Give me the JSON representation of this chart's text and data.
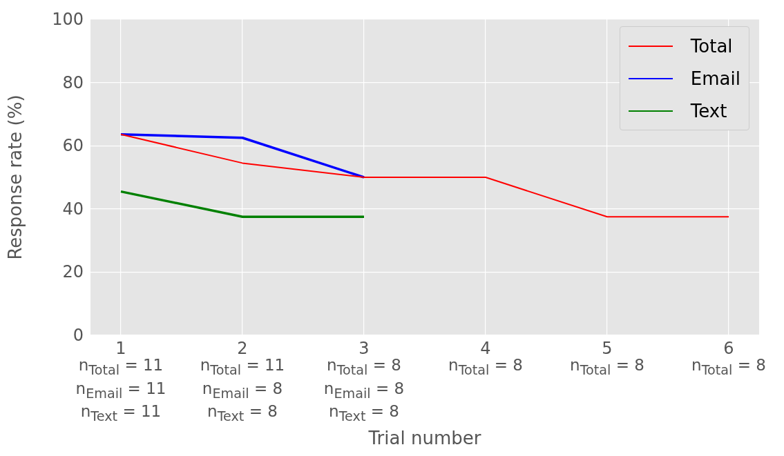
{
  "chart_data": {
    "type": "line",
    "xlabel": "Trial number",
    "ylabel": "Response rate (%)",
    "x": [
      1,
      2,
      3,
      4,
      5,
      6
    ],
    "series": [
      {
        "name": "Total",
        "color": "#ff0000",
        "values": [
          63.6,
          54.5,
          50,
          50,
          37.5,
          37.5
        ]
      },
      {
        "name": "Email",
        "color": "#0000ff",
        "values": [
          63.6,
          62.5,
          50,
          null,
          null,
          null
        ]
      },
      {
        "name": "Text",
        "color": "#008000",
        "values": [
          45.5,
          37.5,
          37.5,
          null,
          null,
          null
        ]
      }
    ],
    "xlim": [
      0.75,
      6.25
    ],
    "ylim": [
      0,
      100
    ],
    "xticks": [
      1,
      2,
      3,
      4,
      5,
      6
    ],
    "yticks": [
      0,
      20,
      40,
      60,
      80,
      100
    ],
    "annotations": [
      "n$_{Total}$ = 11\nn$_{Email}$ = 11\nn$_{Text}$ = 11",
      "n$_{Total}$ = 11\nn$_{Email}$ = 8\nn$_{Text}$ = 8",
      "n$_{Total}$ = 8\nn$_{Email}$ = 8\nn$_{Text}$ = 8",
      "n$_{Total}$ = 8",
      "n$_{Total}$ = 8",
      "n$_{Total}$ = 8"
    ],
    "grid": true,
    "legend": "top right",
    "marker": "none",
    "line_style": "solid"
  }
}
